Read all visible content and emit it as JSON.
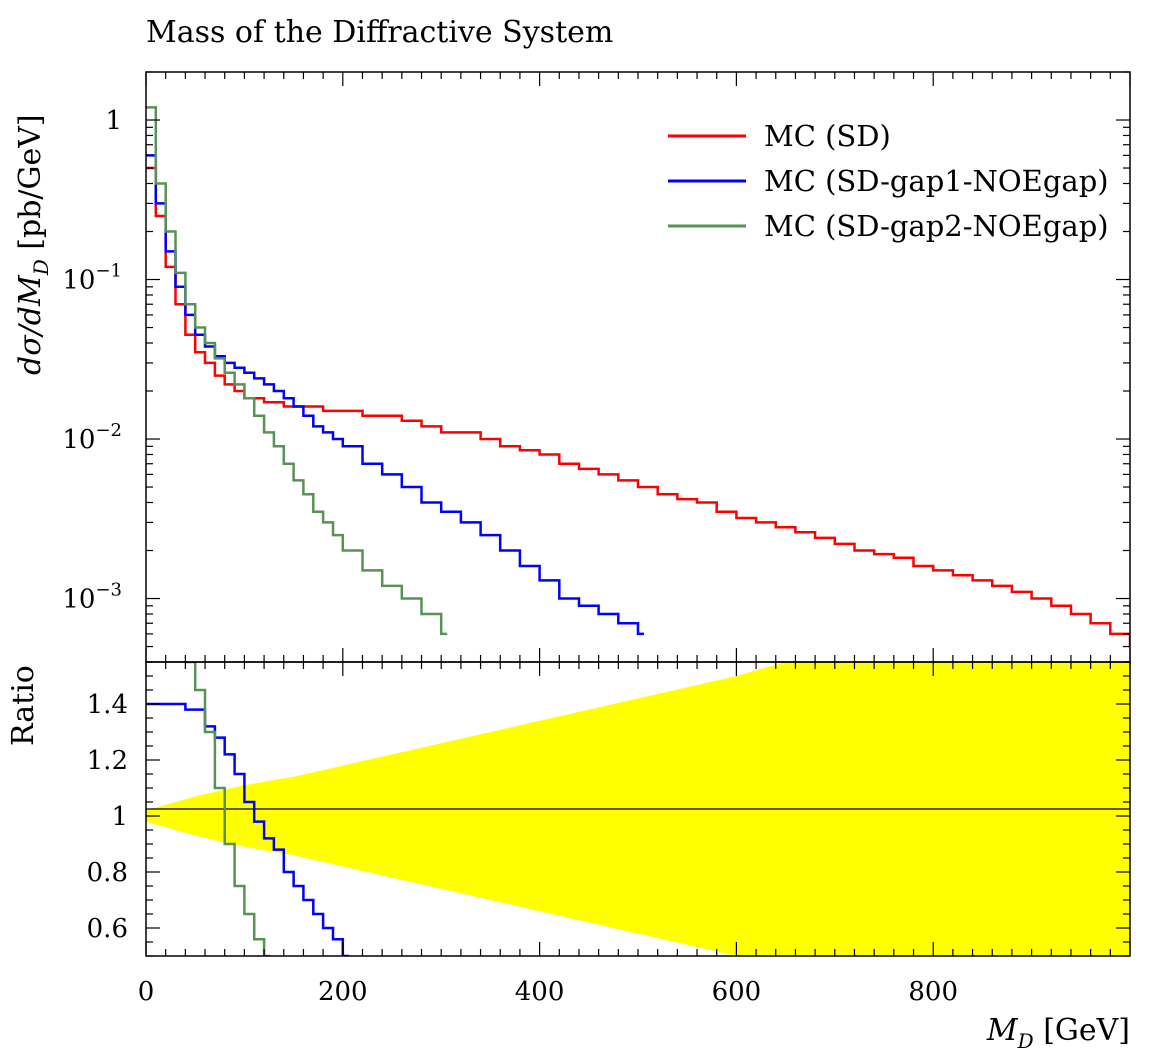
{
  "chart_data": {
    "type": "line",
    "title": "Mass of the Diffractive System",
    "xlabel": "M_D [GeV]",
    "xlabel_main": "M",
    "xlabel_sub": "D",
    "xlabel_unit": " [GeV]",
    "ylabel_main": "dσ/dM_D [pb/GeV]",
    "ylabel_parts": {
      "a": "dσ/dM",
      "sub": "D",
      "b": " [pb/GeV]"
    },
    "ylabel_ratio": "Ratio",
    "xlim": [
      0,
      1000
    ],
    "ylim_main": [
      0.0004,
      2.0
    ],
    "yscale_main": "log",
    "ylim_ratio": [
      0.5,
      1.55
    ],
    "x_ticks": [
      0,
      200,
      400,
      600,
      800
    ],
    "main_y_ticks": [
      {
        "value": 1,
        "base": "1",
        "exp": ""
      },
      {
        "value": 0.1,
        "base": "10",
        "exp": "−1"
      },
      {
        "value": 0.01,
        "base": "10",
        "exp": "−2"
      },
      {
        "value": 0.001,
        "base": "10",
        "exp": "−3"
      }
    ],
    "ratio_y_ticks": [
      "0.6",
      "0.8",
      "1",
      "1.2",
      "1.4"
    ],
    "legend_position": "top-right",
    "series": [
      {
        "name": "MC (SD)",
        "color": "#ff0000",
        "x": [
          0,
          10,
          20,
          30,
          40,
          50,
          60,
          70,
          80,
          90,
          100,
          120,
          140,
          160,
          180,
          200,
          220,
          240,
          260,
          280,
          300,
          320,
          340,
          360,
          380,
          400,
          420,
          440,
          460,
          480,
          500,
          520,
          540,
          560,
          580,
          600,
          620,
          640,
          660,
          680,
          700,
          720,
          740,
          760,
          780,
          800,
          820,
          840,
          860,
          880,
          900,
          920,
          940,
          960,
          980,
          1000
        ],
        "y": [
          0.5,
          0.25,
          0.12,
          0.07,
          0.045,
          0.035,
          0.03,
          0.025,
          0.022,
          0.02,
          0.018,
          0.017,
          0.016,
          0.016,
          0.015,
          0.015,
          0.014,
          0.014,
          0.013,
          0.012,
          0.011,
          0.011,
          0.01,
          0.009,
          0.0085,
          0.008,
          0.007,
          0.0065,
          0.006,
          0.0055,
          0.005,
          0.0045,
          0.0042,
          0.004,
          0.0035,
          0.0032,
          0.003,
          0.0028,
          0.0026,
          0.0024,
          0.0022,
          0.002,
          0.0019,
          0.0018,
          0.0016,
          0.0015,
          0.0014,
          0.0013,
          0.0012,
          0.0011,
          0.001,
          0.0009,
          0.0008,
          0.0007,
          0.0006,
          0.0005
        ]
      },
      {
        "name": "MC (SD-gap1-NOEgap)",
        "color": "#0000ff",
        "x": [
          0,
          10,
          20,
          30,
          40,
          50,
          60,
          70,
          80,
          90,
          100,
          110,
          120,
          130,
          140,
          150,
          160,
          170,
          180,
          190,
          200,
          220,
          240,
          260,
          280,
          300,
          320,
          340,
          360,
          380,
          400,
          420,
          440,
          460,
          480,
          500
        ],
        "y": [
          0.6,
          0.3,
          0.15,
          0.09,
          0.06,
          0.045,
          0.038,
          0.033,
          0.03,
          0.028,
          0.026,
          0.024,
          0.022,
          0.02,
          0.018,
          0.016,
          0.014,
          0.012,
          0.011,
          0.01,
          0.009,
          0.007,
          0.006,
          0.005,
          0.004,
          0.0035,
          0.003,
          0.0025,
          0.002,
          0.0016,
          0.0013,
          0.001,
          0.0009,
          0.0008,
          0.0007,
          0.0006
        ]
      },
      {
        "name": "MC (SD-gap2-NOEgap)",
        "color": "#5a9155",
        "x": [
          0,
          10,
          20,
          30,
          40,
          50,
          60,
          70,
          80,
          90,
          100,
          110,
          120,
          130,
          140,
          150,
          160,
          170,
          180,
          190,
          200,
          220,
          240,
          260,
          280,
          300
        ],
        "y": [
          1.2,
          0.4,
          0.2,
          0.11,
          0.07,
          0.05,
          0.04,
          0.032,
          0.026,
          0.022,
          0.018,
          0.014,
          0.011,
          0.009,
          0.007,
          0.0055,
          0.0045,
          0.0035,
          0.003,
          0.0025,
          0.002,
          0.0015,
          0.0012,
          0.001,
          0.0008,
          0.0006
        ]
      }
    ],
    "ratio_series": [
      {
        "name": "MC (SD-gap1-NOEgap)",
        "color": "#0000ff",
        "x": [
          0,
          20,
          40,
          60,
          70,
          80,
          90,
          100,
          110,
          120,
          130,
          140,
          150,
          160,
          170,
          180,
          190,
          200
        ],
        "y": [
          1.4,
          1.4,
          1.38,
          1.32,
          1.28,
          1.22,
          1.15,
          1.05,
          0.98,
          0.92,
          0.88,
          0.8,
          0.75,
          0.7,
          0.65,
          0.6,
          0.56,
          0.5
        ]
      },
      {
        "name": "MC (SD-gap2-NOEgap)",
        "color": "#5a9155",
        "x": [
          40,
          50,
          60,
          70,
          80,
          90,
          100,
          110,
          120
        ],
        "y": [
          1.55,
          1.45,
          1.3,
          1.1,
          0.9,
          0.75,
          0.65,
          0.56,
          0.5
        ]
      }
    ],
    "ratio_band": {
      "color": "#ffff00",
      "x": [
        0,
        50,
        100,
        150,
        200,
        250,
        300,
        350,
        400,
        450,
        500,
        550,
        600,
        650,
        700,
        750,
        800,
        850,
        900,
        950,
        1000
      ],
      "half_width": [
        0.02,
        0.07,
        0.11,
        0.14,
        0.18,
        0.22,
        0.26,
        0.3,
        0.34,
        0.38,
        0.42,
        0.46,
        0.5,
        0.55,
        0.6,
        0.65,
        0.7,
        0.75,
        0.8,
        0.85,
        0.9
      ]
    }
  }
}
